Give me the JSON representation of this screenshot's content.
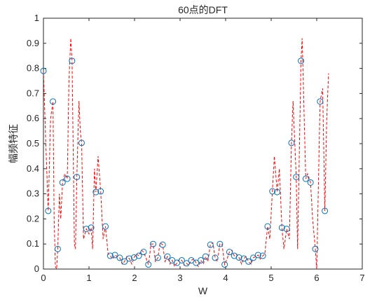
{
  "chart_data": {
    "type": "line",
    "title": "60点的DFT",
    "xlabel": "W",
    "ylabel": "幅频特征",
    "xlim": [
      0,
      7
    ],
    "ylim": [
      0,
      1
    ],
    "xticks": [
      "0",
      "1",
      "2",
      "3",
      "4",
      "5",
      "6",
      "7"
    ],
    "yticks": [
      "0",
      "0.1",
      "0.2",
      "0.3",
      "0.4",
      "0.5",
      "0.6",
      "0.7",
      "0.8",
      "0.9",
      "1"
    ],
    "grid": false,
    "colors": {
      "circles": "#0072BD",
      "dashed": "#FF0000",
      "axes": "#262626"
    },
    "series": [
      {
        "style": "circles",
        "x": [
          0,
          0.1047,
          0.2094,
          0.3142,
          0.4189,
          0.5236,
          0.6283,
          0.733,
          0.8378,
          0.9425,
          1.0472,
          1.1519,
          1.2566,
          1.3614,
          1.4661,
          1.5708,
          1.6755,
          1.7802,
          1.885,
          1.9897,
          2.0944,
          2.1991,
          2.3038,
          2.4086,
          2.5133,
          2.618,
          2.7227,
          2.8274,
          2.9322,
          3.0369,
          3.1416,
          3.2463,
          3.351,
          3.4558,
          3.5605,
          3.6652,
          3.7699,
          3.8746,
          3.9794,
          4.0841,
          4.1888,
          4.2935,
          4.3982,
          4.503,
          4.6077,
          4.7124,
          4.8171,
          4.9218,
          5.0265,
          5.1313,
          5.236,
          5.3407,
          5.4454,
          5.5501,
          5.6549,
          5.7596,
          5.8643,
          5.969,
          6.0737,
          6.1785
        ],
        "values": [
          0.79,
          0.232,
          0.668,
          0.08,
          0.345,
          0.36,
          0.83,
          0.367,
          0.503,
          0.16,
          0.165,
          0.307,
          0.31,
          0.17,
          0.053,
          0.056,
          0.045,
          0.03,
          0.042,
          0.046,
          0.053,
          0.068,
          0.018,
          0.1,
          0.045,
          0.097,
          0.05,
          0.035,
          0.025,
          0.035,
          0.023,
          0.035,
          0.025,
          0.035,
          0.05,
          0.097,
          0.045,
          0.1,
          0.018,
          0.068,
          0.053,
          0.046,
          0.042,
          0.03,
          0.045,
          0.056,
          0.053,
          0.17,
          0.31,
          0.307,
          0.165,
          0.16,
          0.503,
          0.367,
          0.83,
          0.36,
          0.345,
          0.08,
          0.668,
          0.232
        ]
      },
      {
        "style": "dashed",
        "x": [
          0,
          0.052,
          0.1047,
          0.157,
          0.2094,
          0.235,
          0.262,
          0.29,
          0.3142,
          0.35,
          0.38,
          0.4189,
          0.47,
          0.5236,
          0.56,
          0.6,
          0.6283,
          0.68,
          0.703,
          0.733,
          0.78,
          0.81,
          0.8378,
          0.88,
          0.9425,
          1.0,
          1.0472,
          1.08,
          1.12,
          1.1519,
          1.2,
          1.2566,
          1.31,
          1.3614,
          1.42,
          1.4661,
          1.52,
          1.5708,
          1.62,
          1.6755,
          1.73,
          1.7802,
          1.83,
          1.885,
          1.94,
          1.9897,
          2.04,
          2.0944,
          2.15,
          2.1991,
          2.26,
          2.3038,
          2.33,
          2.36,
          2.4086,
          2.46,
          2.5133,
          2.56,
          2.618,
          2.67,
          2.7227,
          2.78,
          2.8274,
          2.88,
          2.9322,
          2.99,
          3.0369,
          3.09,
          3.1416,
          3.19,
          3.2463,
          3.3,
          3.351,
          3.4,
          3.4558,
          3.51,
          3.5605,
          3.61,
          3.6652,
          3.72,
          3.7699,
          3.82,
          3.8746,
          3.92,
          3.9794,
          4.03,
          4.0841,
          4.14,
          4.1888,
          4.24,
          4.2935,
          4.35,
          4.3982,
          4.45,
          4.503,
          4.56,
          4.6077,
          4.66,
          4.7124,
          4.76,
          4.8171,
          4.86,
          4.9218,
          4.97,
          5.0265,
          5.07,
          5.1313,
          5.18,
          5.236,
          5.28,
          5.3407,
          5.4,
          5.4454,
          5.48,
          5.5501,
          5.58,
          5.6549,
          5.68,
          5.7596,
          5.8,
          5.8643,
          5.91,
          5.969,
          6.0,
          6.0737,
          6.13,
          6.1785,
          6.22,
          6.26
        ],
        "values": [
          0.79,
          0.5,
          0.232,
          0.6,
          0.668,
          0.2,
          0.01,
          0.0,
          0.08,
          0.3,
          0.2,
          0.345,
          0.38,
          0.36,
          0.75,
          0.92,
          0.83,
          0.1,
          0.08,
          0.367,
          0.67,
          0.55,
          0.503,
          0.12,
          0.16,
          0.14,
          0.165,
          0.08,
          0.4,
          0.307,
          0.45,
          0.31,
          0.12,
          0.17,
          0.06,
          0.053,
          0.04,
          0.056,
          0.05,
          0.045,
          0.02,
          0.03,
          0.05,
          0.042,
          0.02,
          0.046,
          0.06,
          0.053,
          0.075,
          0.068,
          0.04,
          0.018,
          0.05,
          0.1,
          0.1,
          0.03,
          0.045,
          0.105,
          0.097,
          0.03,
          0.05,
          0.02,
          0.035,
          0.01,
          0.025,
          0.04,
          0.035,
          0.015,
          0.023,
          0.015,
          0.035,
          0.04,
          0.025,
          0.01,
          0.035,
          0.02,
          0.05,
          0.03,
          0.097,
          0.105,
          0.045,
          0.03,
          0.1,
          0.1,
          0.018,
          0.04,
          0.068,
          0.075,
          0.053,
          0.06,
          0.046,
          0.02,
          0.042,
          0.05,
          0.03,
          0.02,
          0.045,
          0.05,
          0.056,
          0.04,
          0.053,
          0.06,
          0.17,
          0.12,
          0.31,
          0.45,
          0.307,
          0.4,
          0.165,
          0.08,
          0.16,
          0.12,
          0.503,
          0.67,
          0.367,
          0.08,
          0.83,
          0.92,
          0.36,
          0.38,
          0.345,
          0.2,
          0.08,
          0.0,
          0.668,
          0.72,
          0.232,
          0.6,
          0.78
        ]
      }
    ]
  }
}
